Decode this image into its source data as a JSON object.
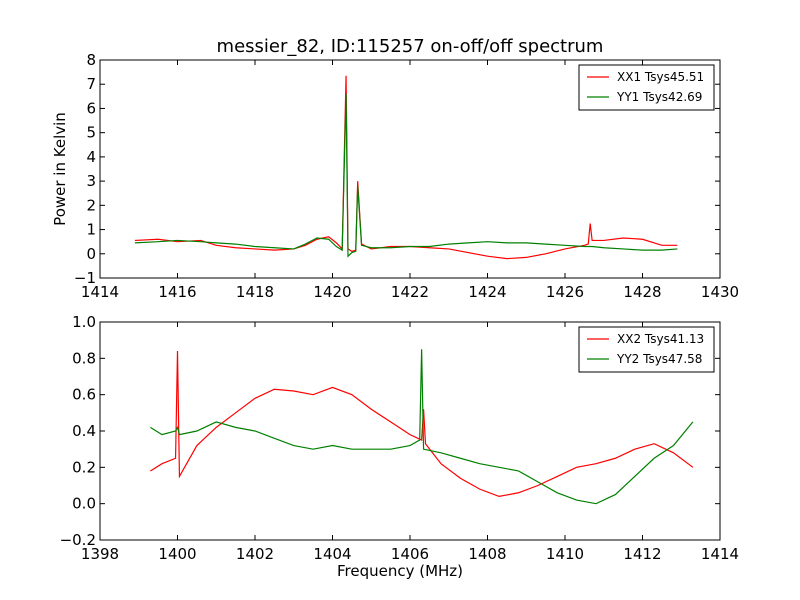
{
  "figure": {
    "title": "messier_82, ID:115257 on-off/off spectrum"
  },
  "chart_data": [
    {
      "type": "line",
      "title": "messier_82, ID:115257 on-off/off spectrum",
      "xlabel": "",
      "ylabel": "Power in Kelvin",
      "xlim": [
        1414,
        1430
      ],
      "ylim": [
        -1,
        8
      ],
      "xticks": [
        "1414",
        "1416",
        "1418",
        "1420",
        "1422",
        "1424",
        "1426",
        "1428",
        "1430"
      ],
      "yticks": [
        "−1",
        "0",
        "1",
        "2",
        "3",
        "4",
        "5",
        "6",
        "7",
        "8"
      ],
      "legend_position": "top-right",
      "grid": false,
      "series": [
        {
          "name": "XX1 Tsys45.51",
          "color": "#ff0000",
          "x": [
            1414.9,
            1415.5,
            1416.0,
            1416.6,
            1417.0,
            1417.5,
            1418.0,
            1418.5,
            1419.0,
            1419.3,
            1419.6,
            1419.9,
            1420.1,
            1420.25,
            1420.35,
            1420.4,
            1420.5,
            1420.6,
            1420.65,
            1420.75,
            1421.0,
            1421.5,
            1422.0,
            1422.5,
            1423.0,
            1423.5,
            1424.0,
            1424.5,
            1425.0,
            1425.5,
            1426.0,
            1426.5,
            1426.6,
            1426.65,
            1426.7,
            1427.0,
            1427.5,
            1428.0,
            1428.5,
            1428.9
          ],
          "y": [
            0.55,
            0.6,
            0.5,
            0.55,
            0.35,
            0.25,
            0.2,
            0.15,
            0.2,
            0.35,
            0.6,
            0.7,
            0.45,
            0.2,
            7.35,
            0.2,
            0.1,
            0.15,
            3.0,
            0.4,
            0.2,
            0.3,
            0.3,
            0.25,
            0.2,
            0.05,
            -0.1,
            -0.2,
            -0.15,
            0.0,
            0.2,
            0.35,
            0.4,
            1.25,
            0.55,
            0.55,
            0.65,
            0.6,
            0.35,
            0.35
          ]
        },
        {
          "name": "YY1 Tsys42.69",
          "color": "#008000",
          "x": [
            1414.9,
            1415.5,
            1416.0,
            1416.6,
            1417.0,
            1417.5,
            1418.0,
            1418.5,
            1419.0,
            1419.3,
            1419.6,
            1419.9,
            1420.1,
            1420.25,
            1420.35,
            1420.4,
            1420.5,
            1420.6,
            1420.65,
            1420.75,
            1421.0,
            1421.5,
            1422.0,
            1422.5,
            1423.0,
            1423.5,
            1424.0,
            1424.5,
            1425.0,
            1425.5,
            1426.0,
            1426.5,
            1426.6,
            1426.65,
            1426.7,
            1427.0,
            1427.5,
            1428.0,
            1428.5,
            1428.9
          ],
          "y": [
            0.45,
            0.5,
            0.55,
            0.5,
            0.45,
            0.4,
            0.3,
            0.25,
            0.2,
            0.4,
            0.65,
            0.6,
            0.3,
            0.15,
            6.6,
            -0.1,
            0.05,
            0.1,
            2.8,
            0.35,
            0.25,
            0.25,
            0.3,
            0.3,
            0.4,
            0.45,
            0.5,
            0.45,
            0.45,
            0.4,
            0.35,
            0.3,
            0.3,
            0.3,
            0.3,
            0.25,
            0.2,
            0.15,
            0.15,
            0.2
          ]
        }
      ]
    },
    {
      "type": "line",
      "title": "",
      "xlabel": "Frequency (MHz)",
      "ylabel": "",
      "xlim": [
        1398,
        1414
      ],
      "ylim": [
        -0.2,
        1.0
      ],
      "xticks": [
        "1398",
        "1400",
        "1402",
        "1404",
        "1406",
        "1408",
        "1410",
        "1412",
        "1414"
      ],
      "yticks": [
        "−0.2",
        "0.0",
        "0.2",
        "0.4",
        "0.6",
        "0.8",
        "1.0"
      ],
      "legend_position": "top-right",
      "grid": false,
      "series": [
        {
          "name": "XX2 Tsys41.13",
          "color": "#ff0000",
          "x": [
            1399.3,
            1399.6,
            1399.95,
            1400.0,
            1400.05,
            1400.5,
            1401.0,
            1401.5,
            1402.0,
            1402.5,
            1403.0,
            1403.5,
            1404.0,
            1404.5,
            1405.0,
            1405.5,
            1406.0,
            1406.3,
            1406.35,
            1406.4,
            1406.8,
            1407.3,
            1407.8,
            1408.3,
            1408.8,
            1409.3,
            1409.8,
            1410.3,
            1410.8,
            1411.3,
            1411.8,
            1412.3,
            1412.8,
            1413.3
          ],
          "y": [
            0.18,
            0.22,
            0.25,
            0.84,
            0.15,
            0.32,
            0.42,
            0.5,
            0.58,
            0.63,
            0.62,
            0.6,
            0.64,
            0.6,
            0.52,
            0.45,
            0.38,
            0.35,
            0.52,
            0.33,
            0.22,
            0.14,
            0.08,
            0.04,
            0.06,
            0.1,
            0.15,
            0.2,
            0.22,
            0.25,
            0.3,
            0.33,
            0.28,
            0.2
          ]
        },
        {
          "name": "YY2 Tsys47.58",
          "color": "#008000",
          "x": [
            1399.3,
            1399.6,
            1399.95,
            1400.0,
            1400.05,
            1400.5,
            1401.0,
            1401.5,
            1402.0,
            1402.5,
            1403.0,
            1403.5,
            1404.0,
            1404.5,
            1405.0,
            1405.5,
            1406.0,
            1406.25,
            1406.3,
            1406.35,
            1406.8,
            1407.3,
            1407.8,
            1408.3,
            1408.8,
            1409.3,
            1409.8,
            1410.3,
            1410.8,
            1411.3,
            1411.8,
            1412.3,
            1412.8,
            1413.3
          ],
          "y": [
            0.42,
            0.38,
            0.4,
            0.42,
            0.38,
            0.4,
            0.45,
            0.42,
            0.4,
            0.36,
            0.32,
            0.3,
            0.32,
            0.3,
            0.3,
            0.3,
            0.32,
            0.35,
            0.85,
            0.3,
            0.28,
            0.25,
            0.22,
            0.2,
            0.18,
            0.12,
            0.06,
            0.02,
            0.0,
            0.05,
            0.15,
            0.25,
            0.32,
            0.45
          ]
        }
      ]
    }
  ]
}
